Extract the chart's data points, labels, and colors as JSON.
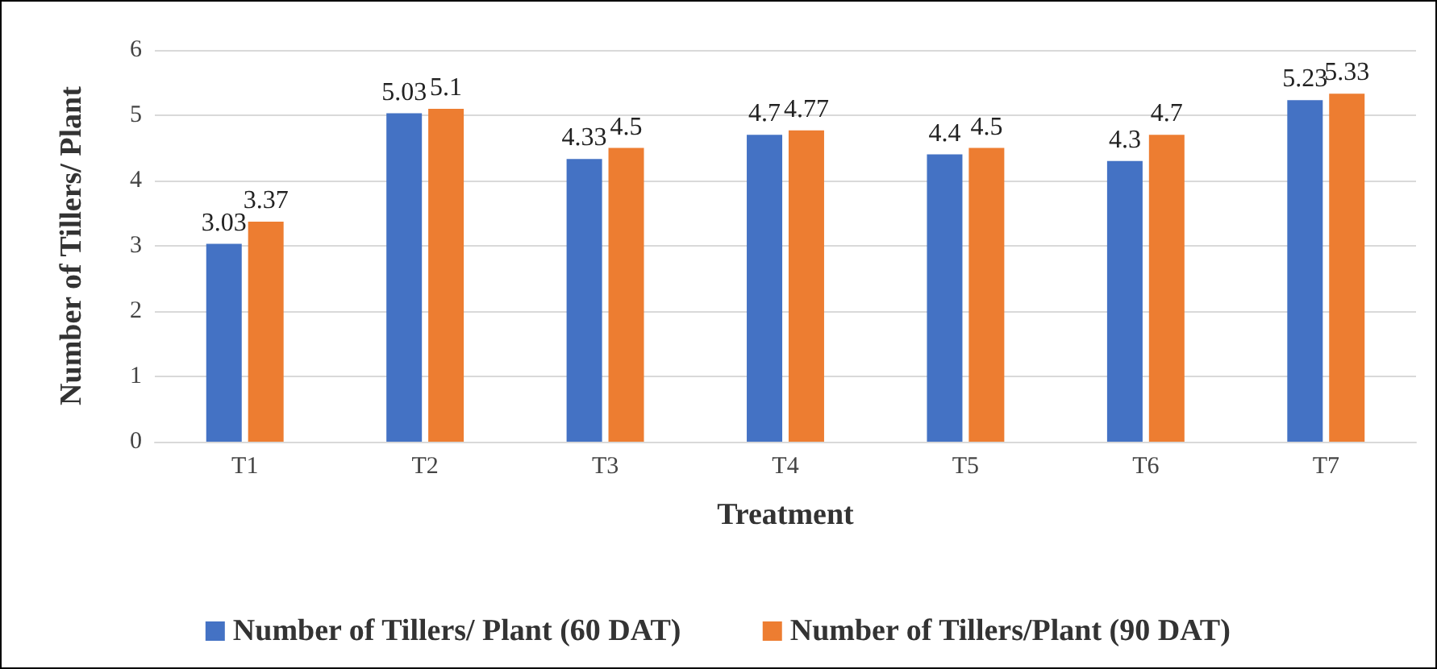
{
  "chart_data": {
    "type": "bar",
    "xlabel": "Treatment",
    "ylabel": "Number of Tillers/ Plant",
    "categories": [
      "T1",
      "T2",
      "T3",
      "T4",
      "T5",
      "T6",
      "T7"
    ],
    "series": [
      {
        "name": "Number of Tillers/ Plant (60 DAT)",
        "color": "#4472c4",
        "values": [
          3.03,
          5.03,
          4.33,
          4.7,
          4.4,
          4.3,
          5.23
        ]
      },
      {
        "name": "Number of Tillers/Plant (90 DAT)",
        "color": "#ed7d31",
        "values": [
          3.37,
          5.1,
          4.5,
          4.77,
          4.5,
          4.7,
          5.33
        ]
      }
    ],
    "ylim": [
      0,
      6
    ],
    "yticks": [
      0,
      1,
      2,
      3,
      4,
      5,
      6
    ],
    "grid": "y",
    "legend": "bottom",
    "data_labels": true
  }
}
